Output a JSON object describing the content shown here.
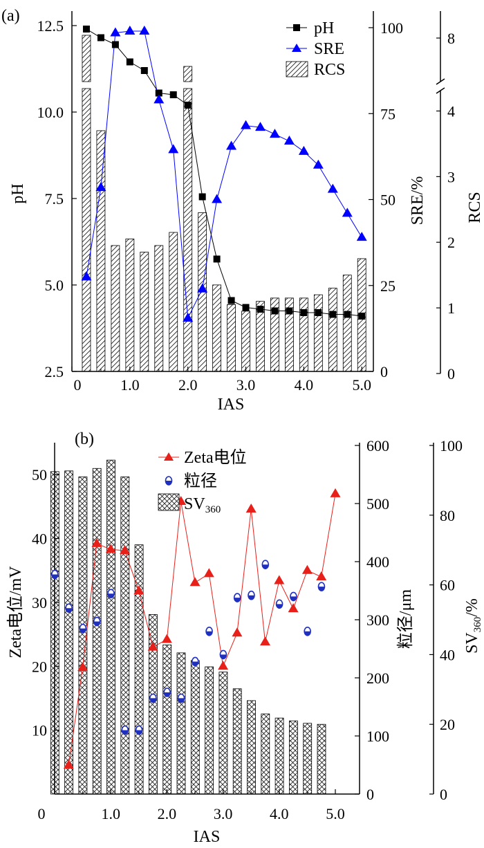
{
  "chart_data": [
    {
      "panel": "(a)",
      "type": "bar",
      "xlabel": "IAS",
      "ylabel_left": "pH",
      "ylabel_right1": "SRE/%",
      "ylabel_right2": "RCS",
      "x_ticks": [
        "0",
        "1.0",
        "2.0",
        "3.0",
        "4.0",
        "5.0"
      ],
      "xlim": [
        0,
        5.2
      ],
      "y_left_ticks": [
        "2.5",
        "5.0",
        "7.5",
        "10.0",
        "12.5"
      ],
      "y_left_lim": [
        2.5,
        12.5
      ],
      "y_right1_ticks": [
        "0",
        "25",
        "50",
        "75",
        "100"
      ],
      "y_right1_lim": [
        0,
        100
      ],
      "y_right2_ticks": [
        "0",
        "1",
        "2",
        "3",
        "4",
        "8"
      ],
      "y_right2_lim": [
        0,
        4.3
      ],
      "y_right2_break": "between 4 and 8",
      "legend": [
        "pH",
        "SRE",
        "RCS"
      ],
      "legend_placement": "top-right",
      "x": [
        0.25,
        0.5,
        0.75,
        1.0,
        1.25,
        1.5,
        1.75,
        2.0,
        2.25,
        2.5,
        2.75,
        3.0,
        3.25,
        3.5,
        3.75,
        4.0,
        4.25,
        4.5,
        4.75,
        5.0
      ],
      "series": [
        {
          "name": "pH",
          "axis": "left",
          "marker": "square",
          "color": "#000000",
          "values": [
            12.4,
            12.15,
            11.95,
            11.45,
            11.2,
            10.55,
            10.5,
            10.2,
            7.55,
            5.75,
            4.55,
            4.35,
            4.3,
            4.25,
            4.25,
            4.2,
            4.2,
            4.15,
            4.15,
            4.1
          ]
        },
        {
          "name": "SRE",
          "axis": "right1",
          "marker": "triangle",
          "color": "#0000ff",
          "values": [
            27.5,
            53.5,
            98.5,
            99.0,
            99.0,
            79.0,
            64.5,
            15.5,
            24.0,
            50.0,
            65.5,
            71.5,
            71.0,
            69.0,
            67.0,
            64.0,
            60.0,
            53.0,
            46.0,
            39.0
          ]
        },
        {
          "name": "RCS",
          "axis": "right2",
          "type": "bar",
          "pattern": "diagonal-hatch",
          "values": [
            4.5,
            3.7,
            1.95,
            2.05,
            1.85,
            1.95,
            2.15,
            4.5,
            2.45,
            1.35,
            1.05,
            0.95,
            1.1,
            1.15,
            1.15,
            1.15,
            1.2,
            1.3,
            1.5,
            1.75
          ]
        }
      ]
    },
    {
      "panel": "(b)",
      "type": "bar",
      "xlabel": "IAS",
      "ylabel_left": "Zeta电位/mV",
      "ylabel_right1": "粒径/μm",
      "ylabel_right2_main": "SV",
      "ylabel_right2_sub": "360",
      "ylabel_right2_suffix": "/%",
      "x_ticks": [
        "0",
        "1.0",
        "2.0",
        "3.0",
        "4.0",
        "5.0"
      ],
      "xlim": [
        0,
        5.3
      ],
      "y_left_ticks": [
        "10",
        "20",
        "30",
        "40",
        "50"
      ],
      "y_left_lim": [
        0,
        55
      ],
      "y_right1_ticks": [
        "0",
        "100",
        "200",
        "300",
        "400",
        "500",
        "600"
      ],
      "y_right1_lim": [
        0,
        600
      ],
      "y_right2_ticks": [
        "0",
        "20",
        "40",
        "60",
        "80",
        "100"
      ],
      "y_right2_lim": [
        0,
        100
      ],
      "legend": [
        "Zeta电位",
        "粒径",
        "SV360"
      ],
      "legend_main": "SV",
      "legend_sub": "360",
      "legend_placement": "top-center",
      "x": [
        0.25,
        0.5,
        0.75,
        1.0,
        1.25,
        1.5,
        1.75,
        2.0,
        2.25,
        2.5,
        2.75,
        3.0,
        3.25,
        3.5,
        3.75,
        4.0,
        4.25,
        4.5,
        4.75,
        5.0
      ],
      "series": [
        {
          "name": "Zeta电位",
          "axis": "left",
          "marker": "triangle",
          "color": "#e8201a",
          "values": [
            4.5,
            19.8,
            39.2,
            38.3,
            38.1,
            31.8,
            23.0,
            24.2,
            45.8,
            33.1,
            34.5,
            20.0,
            25.2,
            44.6,
            23.8,
            33.4,
            29.0,
            35.0,
            34.0,
            47.0
          ]
        },
        {
          "name": "粒径",
          "axis": "right1",
          "marker": "half-filled-circle",
          "color": "#1f2fbf",
          "values": [
            378,
            320,
            285,
            297,
            345,
            110,
            110,
            165,
            175,
            165,
            228,
            280,
            240,
            338,
            342,
            395,
            327,
            340,
            280,
            357
          ]
        },
        {
          "name": "SV360",
          "axis": "right2",
          "type": "bar",
          "pattern": "cross-hatch",
          "values": [
            92.5,
            92.7,
            91.0,
            93.4,
            95.8,
            91.0,
            71.5,
            51.5,
            42.8,
            40.5,
            38.3,
            36.5,
            35.0,
            30.2,
            26.8,
            23.0,
            21.8,
            21.0,
            20.3,
            20.0
          ]
        }
      ]
    }
  ]
}
